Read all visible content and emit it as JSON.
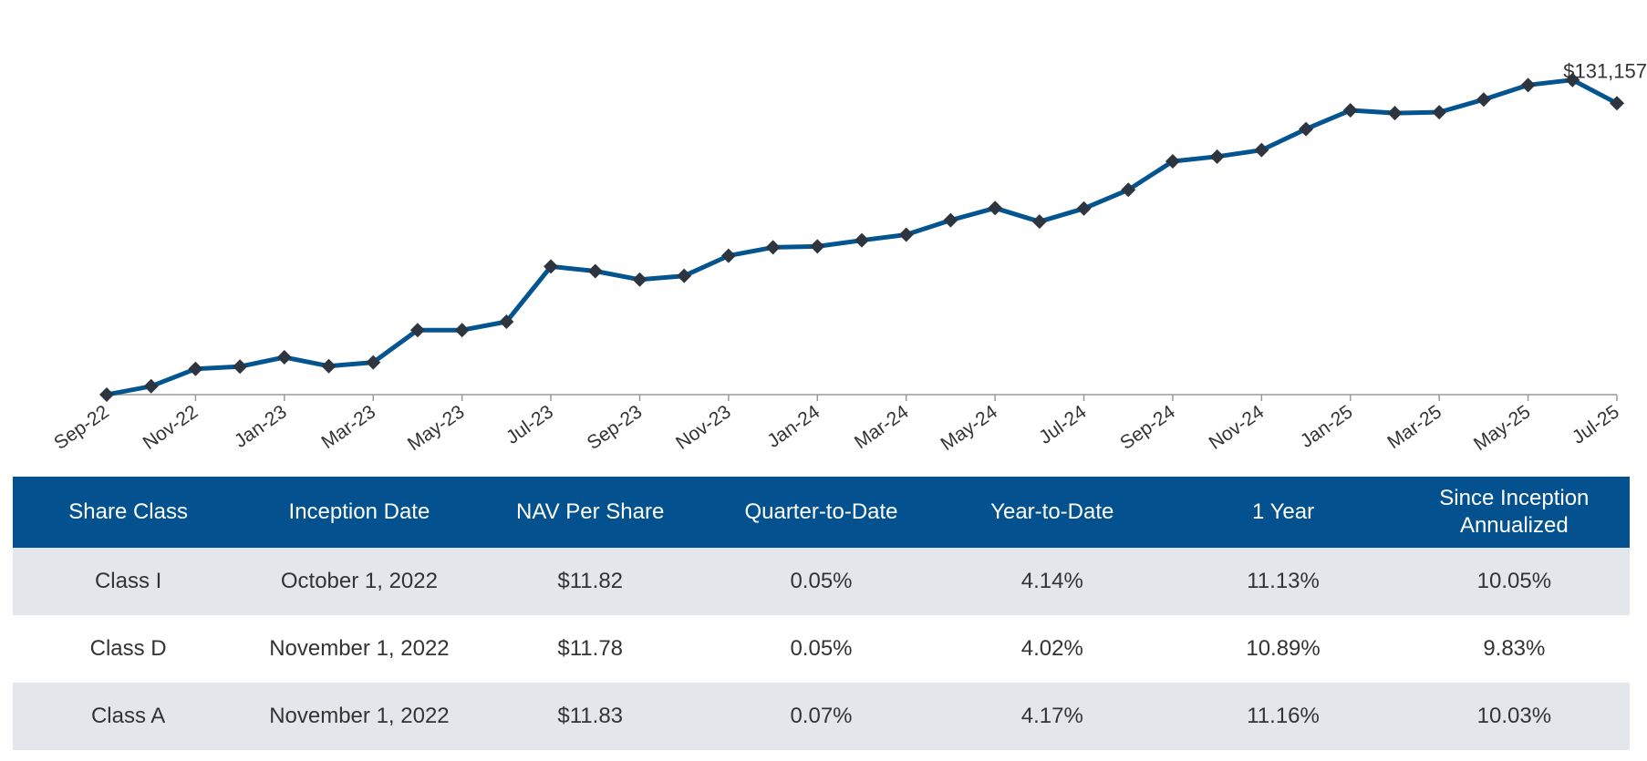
{
  "colors": {
    "line": "#04558f",
    "marker": "#2d3540",
    "header_bg": "#03528f",
    "row_shade": "#e3e7ec",
    "axis": "#9a9a9a"
  },
  "chart_data": {
    "type": "line",
    "end_label": "$131,157",
    "x": [
      "Sep-22",
      "Oct-22",
      "Nov-22",
      "Dec-22",
      "Jan-23",
      "Feb-23",
      "Mar-23",
      "Apr-23",
      "May-23",
      "Jun-23",
      "Jul-23",
      "Aug-23",
      "Sep-23",
      "Oct-23",
      "Nov-23",
      "Dec-23",
      "Jan-24",
      "Feb-24",
      "Mar-24",
      "Apr-24",
      "May-24",
      "Jun-24",
      "Jul-24",
      "Aug-24",
      "Sep-24",
      "Oct-24",
      "Nov-24",
      "Dec-24",
      "Jan-25",
      "Feb-25",
      "Mar-25",
      "Apr-25",
      "May-25",
      "Jun-25",
      "Jul-25"
    ],
    "tick_labels": [
      "Sep-22",
      "Nov-22",
      "Jan-23",
      "Mar-23",
      "May-23",
      "Jul-23",
      "Sep-23",
      "Nov-23",
      "Jan-24",
      "Mar-24",
      "May-24",
      "Jul-24",
      "Sep-24",
      "Nov-24",
      "Jan-25",
      "Mar-25",
      "May-25",
      "Jul-25"
    ],
    "values": [
      100000,
      100900,
      102750,
      103000,
      104000,
      103050,
      103450,
      106900,
      106900,
      107800,
      113700,
      113200,
      112300,
      112700,
      114850,
      115750,
      115850,
      116500,
      117100,
      118650,
      119950,
      118500,
      119900,
      121900,
      124950,
      125450,
      126150,
      128400,
      130400,
      130100,
      130200,
      131550,
      133100,
      133650,
      131157
    ],
    "ylim": [
      100000,
      134400
    ],
    "grid": false,
    "legend": "none"
  },
  "table": {
    "headers": [
      "Share Class",
      "Inception Date",
      "NAV Per Share",
      "Quarter-to-Date",
      "Year-to-Date",
      "1 Year",
      "Since Inception Annualized"
    ],
    "rows": [
      [
        "Class I",
        "October 1, 2022",
        "$11.82",
        "0.05%",
        "4.14%",
        "11.13%",
        "10.05%"
      ],
      [
        "Class D",
        "November 1, 2022",
        "$11.78",
        "0.05%",
        "4.02%",
        "10.89%",
        "9.83%"
      ],
      [
        "Class A",
        "November 1, 2022",
        "$11.83",
        "0.07%",
        "4.17%",
        "11.16%",
        "10.03%"
      ]
    ]
  }
}
